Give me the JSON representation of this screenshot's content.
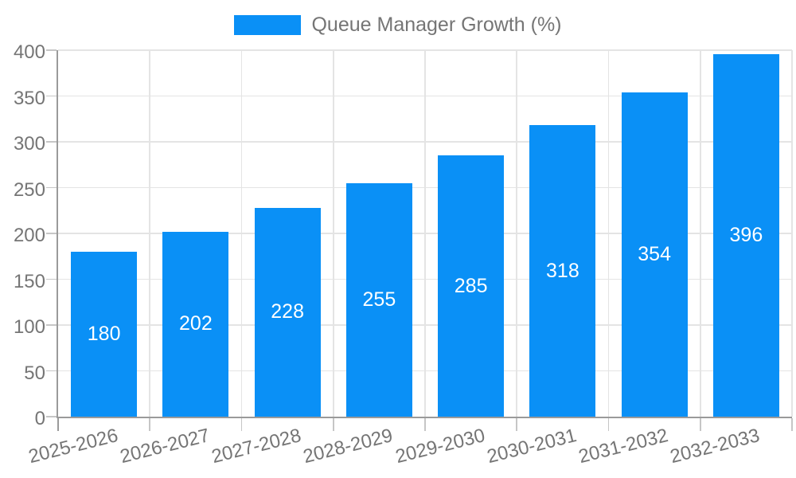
{
  "legend": {
    "label": "Queue Manager Growth (%)"
  },
  "colors": {
    "background": "#ffffff",
    "bar": "#0a90f6",
    "axis": "#9a9a9a",
    "tick": "#c6c6c6",
    "grid": "#e4e4e4",
    "text": "#757575",
    "bar_label": "#ffffff"
  },
  "chart_data": {
    "type": "bar",
    "title": "Queue Manager Growth (%)",
    "categories": [
      "2025-2026",
      "2026-2027",
      "2027-2028",
      "2028-2029",
      "2029-2030",
      "2030-2031",
      "2031-2032",
      "2032-2033"
    ],
    "values": [
      180,
      202,
      228,
      255,
      285,
      318,
      354,
      396
    ],
    "series_name": "Queue Manager Growth (%)",
    "xlabel": "",
    "ylabel": "",
    "ylim": [
      0,
      400
    ],
    "ytick_step": 50,
    "ytick_labels": [
      "0",
      "50",
      "100",
      "150",
      "200",
      "250",
      "300",
      "350",
      "400"
    ],
    "grid": "on",
    "legend_position": "top-center",
    "bar_labels_shown": true,
    "bar_label_position": "center"
  }
}
